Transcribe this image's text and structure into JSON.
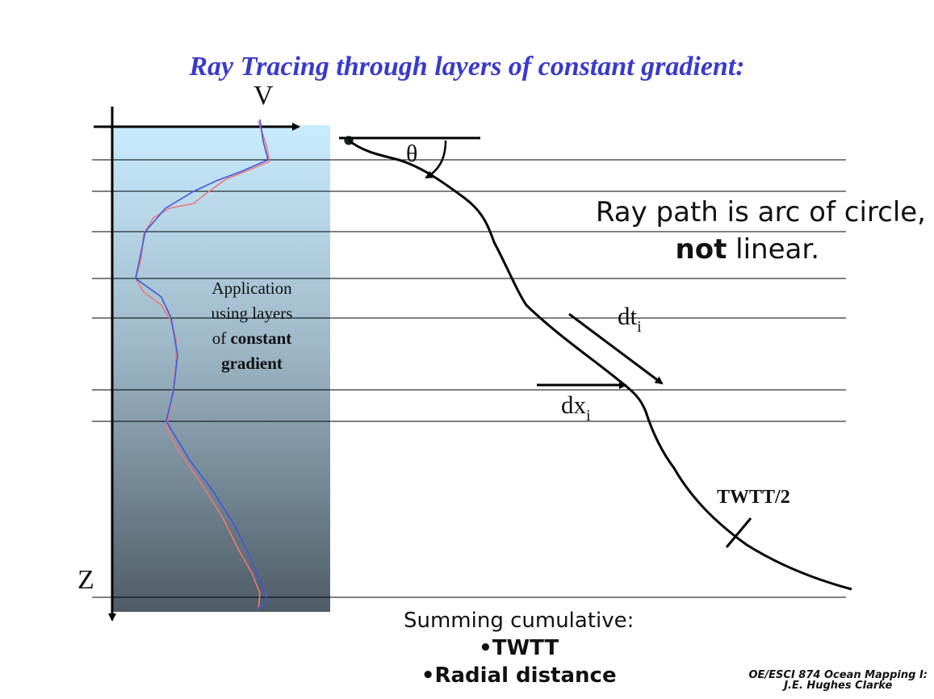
{
  "title": "Ray Tracing through layers of constant gradient:",
  "velocity_axis_label": "V",
  "depth_axis_label": "Z",
  "application_note": {
    "line1": "Application",
    "line2": "using layers",
    "line3_prefix": "of ",
    "line3_bold": "constant",
    "line4_bold": "gradient"
  },
  "angle_label": "θ",
  "dt_label": {
    "base": "dt",
    "sub": "i"
  },
  "dx_label": {
    "base": "dx",
    "sub": "i"
  },
  "twtt_marker_label": "TWTT/2",
  "ray_statement": {
    "line1": "Ray path is arc of circle,",
    "line2_bold": "not",
    "line2_rest": " linear."
  },
  "summing": {
    "heading": "Summing cumulative:",
    "item1": "•TWTT",
    "item2": "•Radial distance"
  },
  "credit": {
    "line1": "OE/ESCI 874 Ocean Mapping I:",
    "line2": "J.E. Hughes Clarke"
  },
  "colors": {
    "title": "#3a3acc",
    "water_top": "#c9ecff",
    "water_bottom": "#4e5c66",
    "profile_measured": "#ee7777",
    "profile_layered": "#4455dd"
  }
}
